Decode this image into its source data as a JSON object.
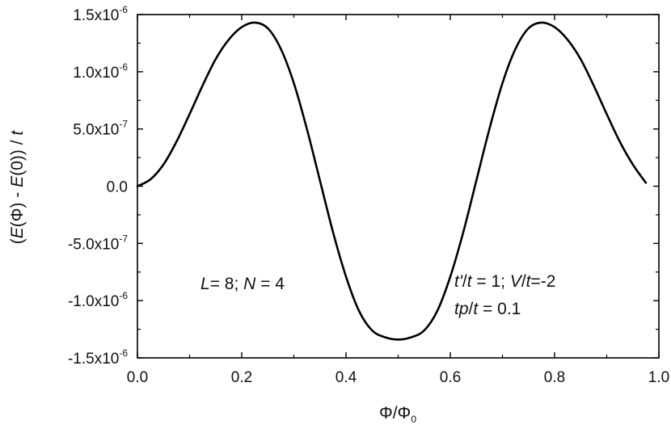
{
  "chart_data": {
    "type": "line",
    "xlabel": "Φ/Φ0",
    "ylabel": "(E(Φ) - E(0)) / t",
    "xlim": [
      0.0,
      1.0
    ],
    "ylim": [
      -1.5e-06,
      1.5e-06
    ],
    "grid": false,
    "legend": "none",
    "x_ticks": [
      {
        "value": 0.0,
        "label": "0.0"
      },
      {
        "value": 0.2,
        "label": "0.2"
      },
      {
        "value": 0.4,
        "label": "0.4"
      },
      {
        "value": 0.6,
        "label": "0.6"
      },
      {
        "value": 0.8,
        "label": "0.8"
      },
      {
        "value": 1.0,
        "label": "1.0"
      }
    ],
    "y_ticks": [
      {
        "value": 1.5e-06,
        "mant": "1.5x10",
        "exp": "-6"
      },
      {
        "value": 1e-06,
        "mant": "1.0x10",
        "exp": "-6"
      },
      {
        "value": 5e-07,
        "mant": "5.0x10",
        "exp": "-7"
      },
      {
        "value": 0.0,
        "mant": "0.0",
        "exp": ""
      },
      {
        "value": -5e-07,
        "mant": "-5.0x10",
        "exp": "-7"
      },
      {
        "value": -1e-06,
        "mant": "-1.0x10",
        "exp": "-6"
      },
      {
        "value": -1.5e-06,
        "mant": "-1.5x10",
        "exp": "-6"
      }
    ],
    "series": [
      {
        "color": "#000000",
        "x": [
          0.0,
          0.025,
          0.05,
          0.075,
          0.1,
          0.125,
          0.15,
          0.175,
          0.2,
          0.225,
          0.25,
          0.275,
          0.3,
          0.325,
          0.35,
          0.375,
          0.4,
          0.425,
          0.45,
          0.475,
          0.5,
          0.525,
          0.55,
          0.575,
          0.6,
          0.625,
          0.65,
          0.675,
          0.7,
          0.725,
          0.75,
          0.775,
          0.8,
          0.825,
          0.85,
          0.875,
          0.9,
          0.925,
          0.95,
          0.975
        ],
        "y": [
          0.0,
          6e-08,
          1.9e-07,
          3.9e-07,
          6.3e-07,
          8.8e-07,
          1.11e-06,
          1.28e-06,
          1.39e-06,
          1.43e-06,
          1.38e-06,
          1.2e-06,
          9e-07,
          5e-07,
          5e-08,
          -4e-07,
          -7.9e-07,
          -1.09e-06,
          -1.26e-06,
          -1.32e-06,
          -1.34e-06,
          -1.32e-06,
          -1.26e-06,
          -1.09e-06,
          -7.9e-07,
          -4e-07,
          5e-08,
          5e-07,
          9e-07,
          1.2e-06,
          1.38e-06,
          1.43e-06,
          1.39e-06,
          1.28e-06,
          1.11e-06,
          8.8e-07,
          6.3e-07,
          3.9e-07,
          1.9e-07,
          3e-08
        ]
      }
    ],
    "annotations": [
      {
        "id": "params-left",
        "text": "L= 8;  N = 4"
      },
      {
        "id": "params-right-1",
        "text": "t'/t = 1;  V/t=-2"
      },
      {
        "id": "params-right-2",
        "text": "tp/t = 0.1"
      }
    ]
  }
}
